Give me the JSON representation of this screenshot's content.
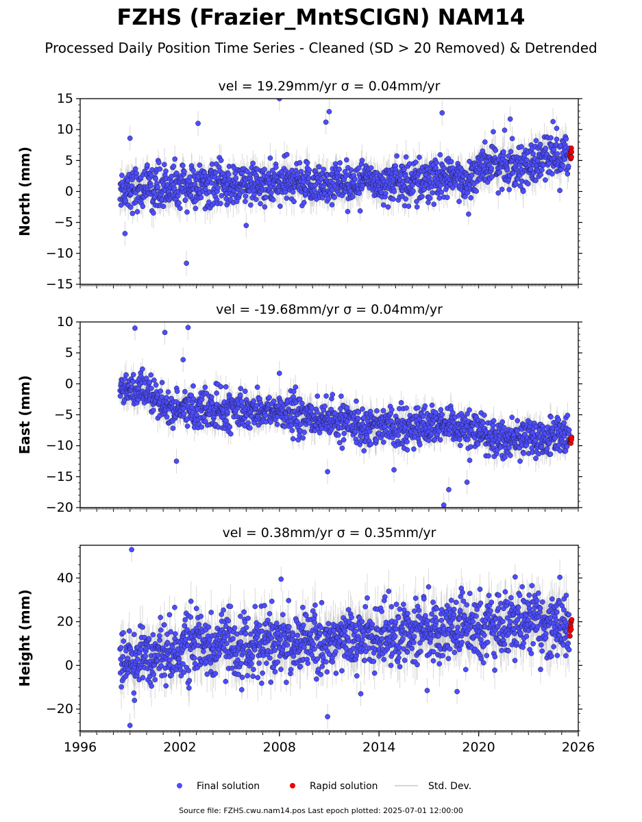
{
  "figure": {
    "title": "FZHS (Frazier_MntSCIGN) NAM14",
    "subtitle": "Processed Daily Position Time Series - Cleaned (SD > 20 Removed) & Detrended",
    "source_note": "Source file: FZHS.cwu.nam14.pos  Last epoch plotted: 2025-07-01 12:00:00",
    "legend": {
      "placement": "bottom-center",
      "entries": [
        {
          "label": "Final solution",
          "color": "#4d4dff"
        },
        {
          "label": "Rapid solution",
          "color": "#ee0000"
        },
        {
          "label": "Std. Dev.",
          "color": "#c8c8c8"
        }
      ]
    }
  },
  "chart_data": [
    {
      "type": "scatter",
      "panel_title": "vel = 19.29mm/yr   σ = 0.04mm/yr",
      "ylabel": "North (mm)",
      "xlim": [
        1996,
        2026
      ],
      "ylim": [
        -15,
        15
      ],
      "yticks": [
        {
          "value": -15,
          "label": "−15"
        },
        {
          "value": -10,
          "label": "−10"
        },
        {
          "value": -5,
          "label": "−5"
        },
        {
          "value": 0,
          "label": "0"
        },
        {
          "value": 5,
          "label": "5"
        },
        {
          "value": 10,
          "label": "10"
        },
        {
          "value": 15,
          "label": "15"
        }
      ],
      "series": [
        {
          "name": "Final solution",
          "color": "#4d4dff",
          "x_range": [
            1998.4,
            2025.45
          ],
          "count": 1400,
          "trend": [
            [
              1998.4,
              0.5
            ],
            [
              2019.5,
              2.0
            ],
            [
              2020.0,
              4.0
            ],
            [
              2023.5,
              4.5
            ],
            [
              2024.0,
              5.5
            ],
            [
              2025.45,
              5.5
            ]
          ],
          "scatter_sd": 1.7
        },
        {
          "name": "Rapid solution",
          "color": "#ee0000",
          "x_range": [
            2025.5,
            2025.6
          ],
          "count": 10,
          "trend": [
            [
              2025.5,
              6.0
            ],
            [
              2025.6,
              6.0
            ]
          ],
          "scatter_sd": 0.6
        }
      ],
      "outliers": [
        [
          1999.0,
          8.6
        ],
        [
          2002.4,
          -11.6
        ],
        [
          2003.1,
          11.0
        ],
        [
          2006.0,
          -5.5
        ],
        [
          2008.0,
          15.0
        ],
        [
          2010.8,
          11.2
        ],
        [
          2011.0,
          12.9
        ],
        [
          2017.8,
          12.7
        ],
        [
          2024.7,
          10.2
        ],
        [
          2021.9,
          11.7
        ],
        [
          1998.7,
          -6.8
        ]
      ]
    },
    {
      "type": "scatter",
      "panel_title": "vel = -19.68mm/yr   σ = 0.04mm/yr",
      "ylabel": "East (mm)",
      "xlim": [
        1996,
        2026
      ],
      "ylim": [
        -20,
        10
      ],
      "yticks": [
        {
          "value": -20,
          "label": "−20"
        },
        {
          "value": -15,
          "label": "−15"
        },
        {
          "value": -10,
          "label": "−10"
        },
        {
          "value": -5,
          "label": "−5"
        },
        {
          "value": 0,
          "label": "0"
        },
        {
          "value": 5,
          "label": "5"
        },
        {
          "value": 10,
          "label": "10"
        }
      ],
      "series": [
        {
          "name": "Final solution",
          "color": "#4d4dff",
          "x_range": [
            1998.4,
            2025.45
          ],
          "count": 1400,
          "trend": [
            [
              1998.4,
              0.0
            ],
            [
              2000.0,
              -2.0
            ],
            [
              2001.5,
              -4.0
            ],
            [
              2008.0,
              -4.5
            ],
            [
              2012.0,
              -6.5
            ],
            [
              2018.0,
              -7.0
            ],
            [
              2020.0,
              -8.0
            ],
            [
              2022.0,
              -9.0
            ],
            [
              2025.45,
              -8.5
            ]
          ],
          "scatter_sd": 1.5
        },
        {
          "name": "Rapid solution",
          "color": "#ee0000",
          "x_range": [
            2025.5,
            2025.6
          ],
          "count": 10,
          "trend": [
            [
              2025.5,
              -9.0
            ],
            [
              2025.6,
              -9.0
            ]
          ],
          "scatter_sd": 0.5
        }
      ],
      "outliers": [
        [
          1999.3,
          9.0
        ],
        [
          2001.1,
          8.3
        ],
        [
          2002.5,
          9.1
        ],
        [
          2002.2,
          3.9
        ],
        [
          2001.8,
          -12.5
        ],
        [
          2010.9,
          -14.2
        ],
        [
          2014.9,
          -13.9
        ],
        [
          2017.9,
          -19.6
        ],
        [
          2018.2,
          -17.1
        ],
        [
          2019.3,
          -15.9
        ],
        [
          2008.0,
          1.7
        ]
      ]
    },
    {
      "type": "scatter",
      "panel_title": "vel = 0.38mm/yr   σ = 0.35mm/yr",
      "ylabel": "Height (mm)",
      "xlim": [
        1996,
        2026
      ],
      "ylim": [
        -30,
        55
      ],
      "yticks": [
        {
          "value": -20,
          "label": "−20"
        },
        {
          "value": 0,
          "label": "0"
        },
        {
          "value": 20,
          "label": "20"
        },
        {
          "value": 40,
          "label": "40"
        }
      ],
      "xticks": [
        {
          "value": 1996,
          "label": "1996"
        },
        {
          "value": 2002,
          "label": "2002"
        },
        {
          "value": 2008,
          "label": "2008"
        },
        {
          "value": 2014,
          "label": "2014"
        },
        {
          "value": 2020,
          "label": "2020"
        },
        {
          "value": 2026,
          "label": "2026"
        }
      ],
      "series": [
        {
          "name": "Final solution",
          "color": "#4d4dff",
          "x_range": [
            1998.4,
            2025.45
          ],
          "count": 1400,
          "trend": [
            [
              1998.4,
              2.0
            ],
            [
              2002.0,
              8.0
            ],
            [
              2008.0,
              10.0
            ],
            [
              2014.0,
              14.0
            ],
            [
              2020.0,
              17.0
            ],
            [
              2022.5,
              20.0
            ],
            [
              2025.45,
              18.0
            ]
          ],
          "scatter_sd": 7.0
        },
        {
          "name": "Rapid solution",
          "color": "#ee0000",
          "x_range": [
            2025.5,
            2025.6
          ],
          "count": 10,
          "trend": [
            [
              2025.5,
              18.5
            ],
            [
              2025.6,
              18.5
            ]
          ],
          "scatter_sd": 3.0
        }
      ],
      "outliers": [
        [
          1999.1,
          53.0
        ],
        [
          1999.0,
          -27.5
        ],
        [
          2010.9,
          -23.5
        ],
        [
          2008.1,
          39.5
        ],
        [
          2022.2,
          40.5
        ],
        [
          2012.9,
          -13.0
        ],
        [
          2018.7,
          -12.0
        ],
        [
          2016.9,
          -11.5
        ]
      ]
    }
  ]
}
